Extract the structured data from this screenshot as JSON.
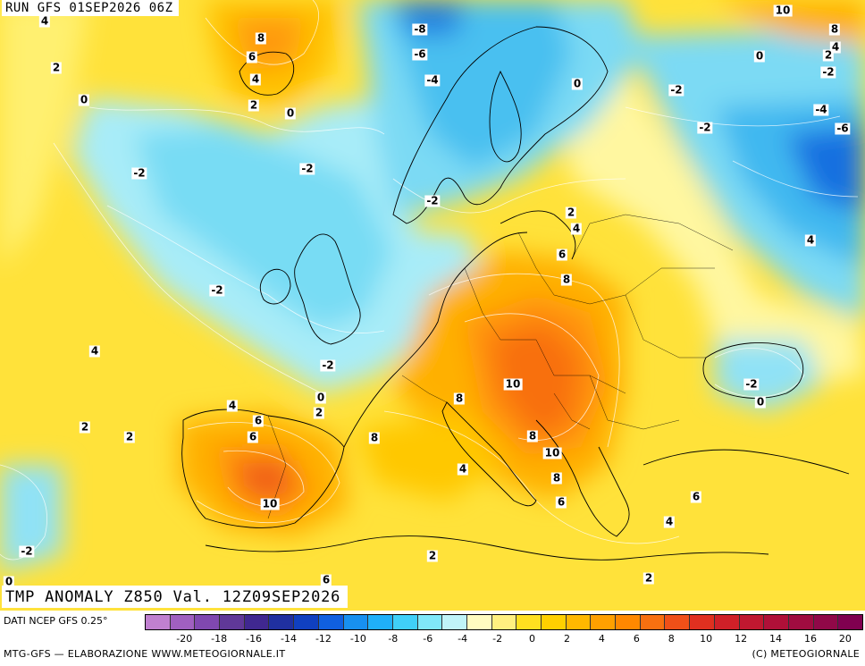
{
  "header": {
    "run": "RUN GFS 01SEP2026 06Z"
  },
  "title": "TMP ANOMALY Z850 Val. 12Z09SEP2026",
  "footer": {
    "source": "DATI NCEP GFS 0.25°",
    "credit_left": "MTG-GFS — ELABORAZIONE WWW.METEOGIORNALE.IT",
    "credit_right": "(C) METEOGIORNALE"
  },
  "legend": {
    "ticks": [
      "-20",
      "-18",
      "-16",
      "-14",
      "-12",
      "-10",
      "-8",
      "-6",
      "-4",
      "-2",
      "0",
      "2",
      "4",
      "6",
      "8",
      "10",
      "12",
      "14",
      "16",
      "20"
    ],
    "colors": [
      "#c080d0",
      "#a060c0",
      "#8048b0",
      "#603898",
      "#402890",
      "#2030a0",
      "#1040c0",
      "#1060e0",
      "#1890f0",
      "#20b0f8",
      "#40d0f8",
      "#80e8f8",
      "#c0f4f8",
      "#fffcc0",
      "#fff080",
      "#ffe020",
      "#ffd000",
      "#ffb800",
      "#ffa000",
      "#ff8800",
      "#f87010",
      "#f05018",
      "#e03020",
      "#d02028",
      "#c01830",
      "#b01038",
      "#a00c40",
      "#900848",
      "#800050"
    ]
  },
  "contour_labels": [
    "4",
    "2",
    "0",
    "8",
    "6",
    "4",
    "2",
    "0",
    "-8",
    "-6",
    "-4",
    "-2",
    "-2",
    "-2",
    "-2",
    "-2",
    "0",
    "-2",
    "-2",
    "-4",
    "-6",
    "10",
    "8",
    "4",
    "2",
    "0",
    "2",
    "4",
    "6",
    "8",
    "10",
    "8",
    "6",
    "4",
    "2",
    "-2",
    "0",
    "2",
    "4",
    "6",
    "8",
    "2",
    "4",
    "2",
    "8",
    "10",
    "4",
    "8",
    "10",
    "6",
    "6",
    "4",
    "-2",
    "0",
    "2",
    "6",
    "-2",
    "0"
  ],
  "icons": {
    "map": "temperature-anomaly-map"
  }
}
